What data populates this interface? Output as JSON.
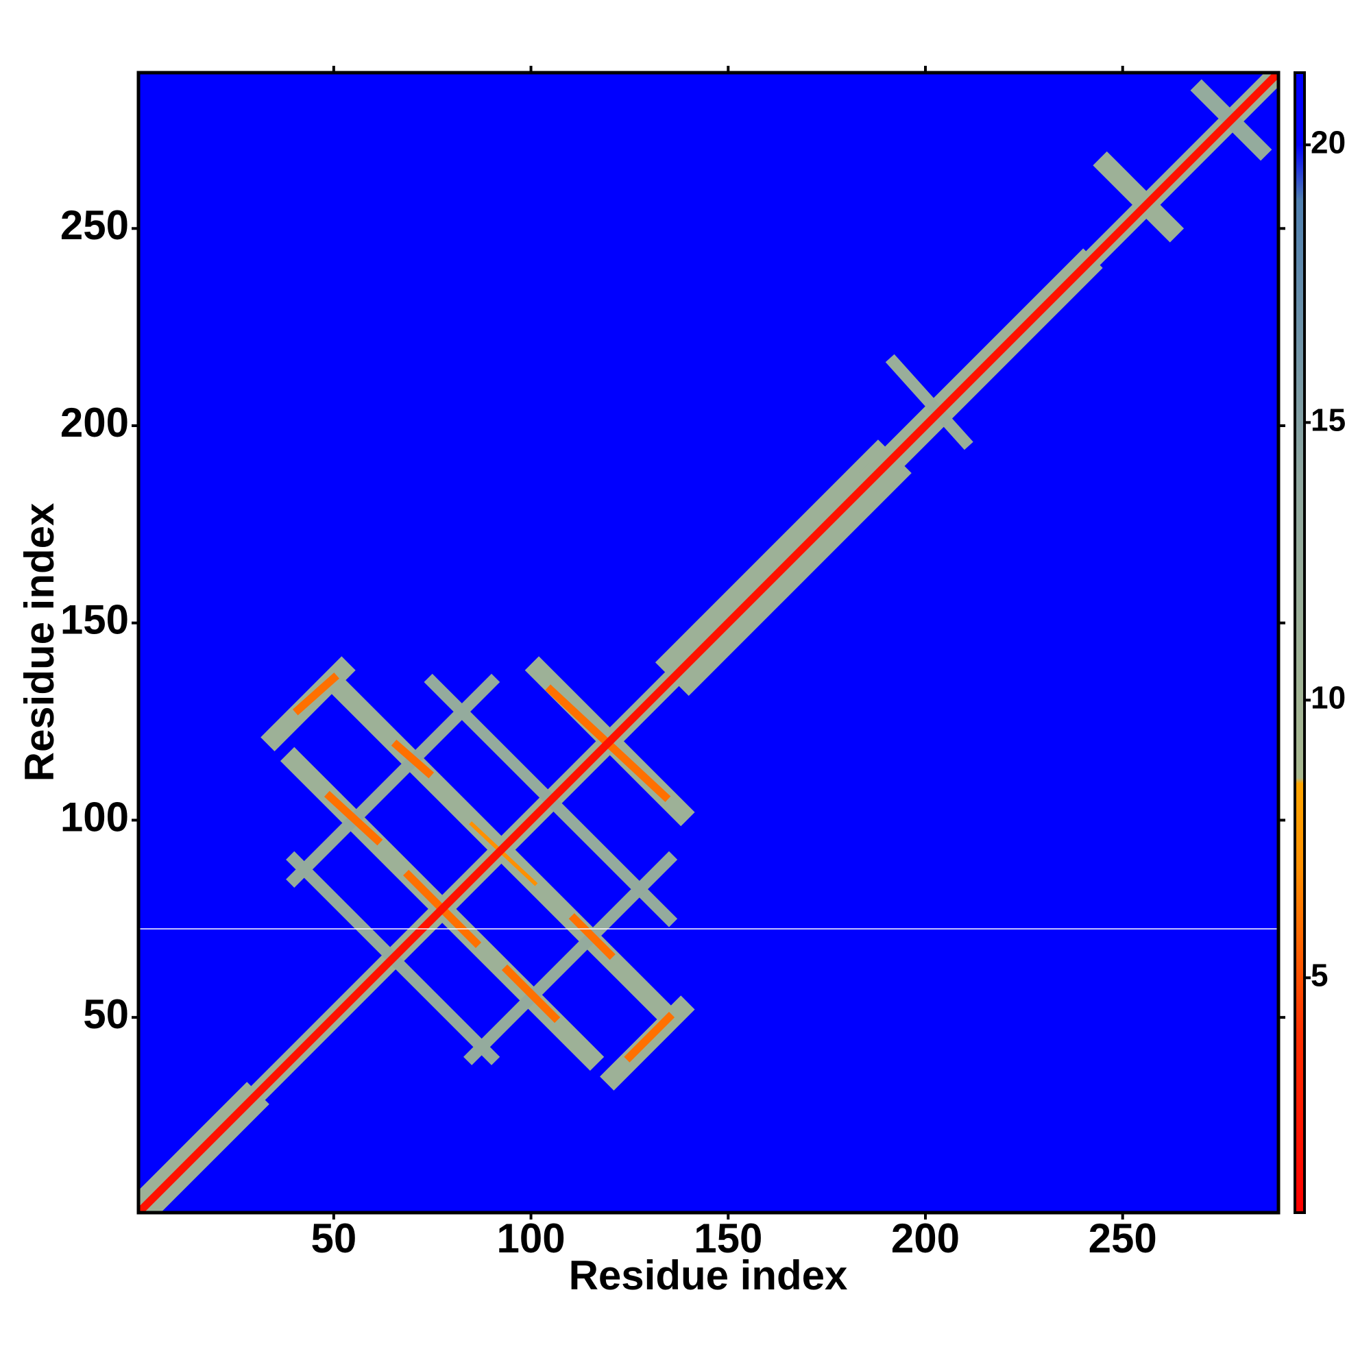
{
  "chart_data": {
    "type": "heatmap",
    "xlabel": "Residue index",
    "ylabel": "Residue index",
    "xlim": [
      0.5,
      289.5
    ],
    "ylim": [
      0.5,
      289.5
    ],
    "xticks": [
      50,
      100,
      150,
      200,
      250
    ],
    "yticks": [
      50,
      100,
      150,
      200,
      250
    ],
    "clim": [
      0.77,
      21.3
    ],
    "cticks": [
      5,
      10,
      15,
      20
    ],
    "colorscale": [
      [
        0.77,
        "#ff0000"
      ],
      [
        4,
        "#ff3000"
      ],
      [
        7,
        "#ff9000"
      ],
      [
        8.5,
        "#ffa500"
      ],
      [
        8.6,
        "#a8b890"
      ],
      [
        14,
        "#90a8a0"
      ],
      [
        19,
        "#5080b0"
      ],
      [
        20,
        "#0000ff"
      ]
    ],
    "background": 21,
    "bands": [
      {
        "from": [
          1,
          1
        ],
        "to": [
          28,
          28
        ],
        "width": 8,
        "value": 11
      },
      {
        "from": [
          28,
          28
        ],
        "to": [
          140,
          140
        ],
        "width": 5,
        "value": 11
      },
      {
        "from": [
          140,
          140
        ],
        "to": [
          188,
          188
        ],
        "width": 12,
        "value": 11
      },
      {
        "from": [
          188,
          188
        ],
        "to": [
          240,
          240
        ],
        "width": 7,
        "value": 11
      },
      {
        "from": [
          240,
          240
        ],
        "to": [
          290,
          290
        ],
        "width": 5,
        "value": 11
      },
      {
        "from": [
          40,
          115
        ],
        "to": [
          115,
          40
        ],
        "width": 5,
        "value": 11
      },
      {
        "from": [
          50,
          135
        ],
        "to": [
          135,
          50
        ],
        "width": 5,
        "value": 11
      },
      {
        "from": [
          102,
          138
        ],
        "to": [
          138,
          102
        ],
        "width": 5,
        "value": 11
      },
      {
        "from": [
          40,
          90
        ],
        "to": [
          90,
          40
        ],
        "width": 3,
        "value": 13
      },
      {
        "from": [
          75,
          135
        ],
        "to": [
          135,
          75
        ],
        "width": 3,
        "value": 13
      },
      {
        "from": [
          35,
          121
        ],
        "to": [
          52,
          138
        ],
        "width": 5,
        "value": 11
      },
      {
        "from": [
          121,
          35
        ],
        "to": [
          138,
          52
        ],
        "width": 5,
        "value": 11
      },
      {
        "from": [
          40,
          85
        ],
        "to": [
          90,
          135
        ],
        "width": 3,
        "value": 13
      },
      {
        "from": [
          85,
          40
        ],
        "to": [
          135,
          90
        ],
        "width": 3,
        "value": 13
      },
      {
        "from": [
          246,
          266
        ],
        "to": [
          262,
          250
        ],
        "width": 5,
        "value": 11
      },
      {
        "from": [
          192,
          216
        ],
        "to": [
          210,
          196
        ],
        "width": 3,
        "value": 12
      },
      {
        "from": [
          270,
          285
        ],
        "to": [
          285,
          270
        ],
        "width": 4,
        "value": 13
      },
      {
        "from": [
          41,
          128
        ],
        "to": [
          50,
          136
        ],
        "width": 2,
        "value": 6
      },
      {
        "from": [
          66,
          119
        ],
        "to": [
          74,
          112
        ],
        "width": 2,
        "value": 6
      },
      {
        "from": [
          49,
          106
        ],
        "to": [
          61,
          95
        ],
        "width": 2,
        "value": 6
      },
      {
        "from": [
          105,
          133
        ],
        "to": [
          134,
          106
        ],
        "width": 2,
        "value": 6
      },
      {
        "from": [
          69,
          86
        ],
        "to": [
          86,
          69
        ],
        "width": 2,
        "value": 6
      },
      {
        "from": [
          85,
          99
        ],
        "to": [
          101,
          84
        ],
        "width": 1,
        "value": 7
      },
      {
        "from": [
          111,
          75
        ],
        "to": [
          120,
          66
        ],
        "width": 2,
        "value": 6
      },
      {
        "from": [
          94,
          62
        ],
        "to": [
          106,
          50
        ],
        "width": 2,
        "value": 6
      },
      {
        "from": [
          125,
          40
        ],
        "to": [
          135,
          50
        ],
        "width": 2,
        "value": 6
      },
      {
        "from": [
          1,
          1
        ],
        "to": [
          290,
          290
        ],
        "width": 2,
        "value": 2
      }
    ]
  }
}
